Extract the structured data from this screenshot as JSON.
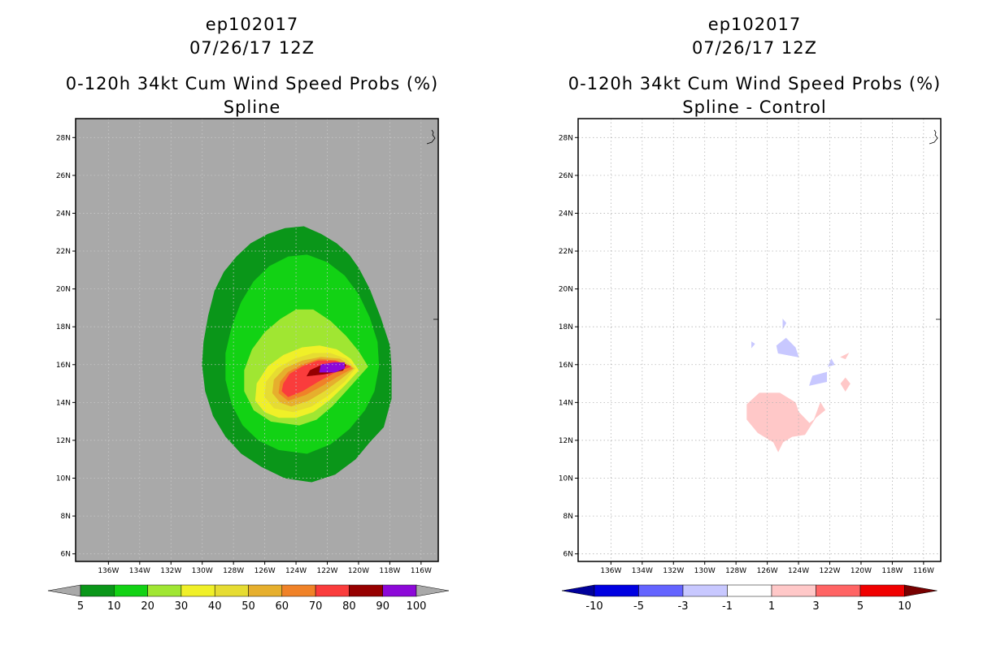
{
  "chart_data": [
    {
      "type": "heatmap",
      "title": [
        "ep102017",
        "07/26/17 12Z",
        "0-120h 34kt Cum Wind Speed Probs (%)",
        "Spline"
      ],
      "xlabel": "",
      "ylabel": "",
      "x_ticks": [
        "136W",
        "134W",
        "132W",
        "130W",
        "128W",
        "126W",
        "124W",
        "122W",
        "120W",
        "118W",
        "116W"
      ],
      "y_ticks": [
        "6N",
        "8N",
        "10N",
        "12N",
        "14N",
        "16N",
        "18N",
        "20N",
        "22N",
        "24N",
        "26N",
        "28N"
      ],
      "xlim": [
        -138.1,
        -114.9
      ],
      "ylim": [
        5.6,
        29.0
      ],
      "grid": true,
      "background_color": "#a9a9a9",
      "colorbar": {
        "labels": [
          "5",
          "10",
          "20",
          "30",
          "40",
          "50",
          "60",
          "70",
          "80",
          "90",
          "100"
        ],
        "colors": [
          "#0a9619",
          "#12d214",
          "#a0e632",
          "#f0f028",
          "#e6dc32",
          "#e6af2d",
          "#f08228",
          "#fa3c3c",
          "#960000",
          "#8c08d8"
        ],
        "extend": "both",
        "extend_color": "#a9a9a9"
      },
      "contours": [
        {
          "level": "5-10",
          "color": "#0a9619",
          "polygon": [
            [
              -123.0,
              9.8
            ],
            [
              -121.5,
              10.2
            ],
            [
              -120.2,
              11.0
            ],
            [
              -119.3,
              11.9
            ],
            [
              -118.4,
              12.7
            ],
            [
              -117.9,
              14.2
            ],
            [
              -117.9,
              15.8
            ],
            [
              -118.0,
              17.0
            ],
            [
              -118.6,
              18.5
            ],
            [
              -119.3,
              20.0
            ],
            [
              -120.0,
              21.1
            ],
            [
              -120.6,
              21.8
            ],
            [
              -121.4,
              22.4
            ],
            [
              -122.4,
              22.9
            ],
            [
              -123.5,
              23.3
            ],
            [
              -124.7,
              23.2
            ],
            [
              -125.8,
              22.9
            ],
            [
              -126.9,
              22.4
            ],
            [
              -127.8,
              21.7
            ],
            [
              -128.6,
              20.9
            ],
            [
              -129.2,
              19.9
            ],
            [
              -129.6,
              18.6
            ],
            [
              -129.9,
              17.2
            ],
            [
              -130.0,
              16.0
            ],
            [
              -129.8,
              14.6
            ],
            [
              -129.3,
              13.3
            ],
            [
              -128.5,
              12.2
            ],
            [
              -127.5,
              11.3
            ],
            [
              -126.2,
              10.6
            ],
            [
              -124.7,
              10.0
            ]
          ]
        },
        {
          "level": "10-20",
          "color": "#12d214",
          "polygon": [
            [
              -123.3,
              11.3
            ],
            [
              -121.8,
              11.8
            ],
            [
              -120.6,
              12.6
            ],
            [
              -119.6,
              13.6
            ],
            [
              -119.0,
              14.6
            ],
            [
              -118.7,
              15.9
            ],
            [
              -118.8,
              17.2
            ],
            [
              -119.3,
              18.5
            ],
            [
              -120.0,
              19.7
            ],
            [
              -120.9,
              20.7
            ],
            [
              -122.0,
              21.4
            ],
            [
              -123.3,
              21.8
            ],
            [
              -124.5,
              21.7
            ],
            [
              -125.7,
              21.2
            ],
            [
              -126.7,
              20.4
            ],
            [
              -127.5,
              19.3
            ],
            [
              -128.1,
              18.0
            ],
            [
              -128.5,
              16.6
            ],
            [
              -128.5,
              15.2
            ],
            [
              -128.1,
              13.9
            ],
            [
              -127.4,
              12.8
            ],
            [
              -126.4,
              12.0
            ],
            [
              -125.1,
              11.5
            ]
          ]
        },
        {
          "level": "20-30",
          "color": "#a0e632",
          "polygon": [
            [
              -123.8,
              12.8
            ],
            [
              -122.7,
              13.1
            ],
            [
              -121.7,
              13.8
            ],
            [
              -120.7,
              14.7
            ],
            [
              -119.4,
              15.9
            ],
            [
              -120.0,
              16.7
            ],
            [
              -120.8,
              17.5
            ],
            [
              -121.8,
              18.3
            ],
            [
              -122.9,
              18.9
            ],
            [
              -124.0,
              18.9
            ],
            [
              -125.0,
              18.4
            ],
            [
              -126.0,
              17.7
            ],
            [
              -126.8,
              16.8
            ],
            [
              -127.3,
              15.7
            ],
            [
              -127.3,
              14.6
            ],
            [
              -126.7,
              13.6
            ],
            [
              -125.6,
              13.0
            ]
          ]
        },
        {
          "level": "30-40",
          "color": "#f0f028",
          "polygon": [
            [
              -124.0,
              13.2
            ],
            [
              -122.9,
              13.5
            ],
            [
              -121.9,
              14.1
            ],
            [
              -120.9,
              14.9
            ],
            [
              -120.0,
              15.7
            ],
            [
              -120.5,
              16.3
            ],
            [
              -121.4,
              16.8
            ],
            [
              -122.5,
              17.0
            ],
            [
              -123.6,
              16.9
            ],
            [
              -124.8,
              16.5
            ],
            [
              -125.8,
              15.9
            ],
            [
              -126.5,
              15.0
            ],
            [
              -126.6,
              14.1
            ],
            [
              -126.0,
              13.5
            ],
            [
              -125.1,
              13.2
            ]
          ]
        },
        {
          "level": "40-50",
          "color": "#e6dc32",
          "polygon": [
            [
              -124.2,
              13.5
            ],
            [
              -123.0,
              13.8
            ],
            [
              -121.9,
              14.4
            ],
            [
              -120.9,
              15.1
            ],
            [
              -120.2,
              15.8
            ],
            [
              -120.8,
              16.3
            ],
            [
              -121.8,
              16.6
            ],
            [
              -122.9,
              16.6
            ],
            [
              -124.1,
              16.3
            ],
            [
              -125.2,
              15.8
            ],
            [
              -125.9,
              15.1
            ],
            [
              -126.0,
              14.3
            ],
            [
              -125.4,
              13.7
            ]
          ]
        },
        {
          "level": "50-60",
          "color": "#e6af2d",
          "polygon": [
            [
              -124.3,
              13.8
            ],
            [
              -123.2,
              14.1
            ],
            [
              -122.2,
              14.6
            ],
            [
              -121.2,
              15.2
            ],
            [
              -120.3,
              15.8
            ],
            [
              -121.2,
              16.3
            ],
            [
              -122.4,
              16.4
            ],
            [
              -123.6,
              16.2
            ],
            [
              -124.7,
              15.8
            ],
            [
              -125.4,
              15.2
            ],
            [
              -125.5,
              14.5
            ],
            [
              -125.0,
              14.0
            ]
          ]
        },
        {
          "level": "60-70",
          "color": "#f08228",
          "polygon": [
            [
              -124.5,
              14.1
            ],
            [
              -123.4,
              14.4
            ],
            [
              -122.3,
              14.9
            ],
            [
              -121.3,
              15.4
            ],
            [
              -120.4,
              15.8
            ],
            [
              -121.4,
              16.2
            ],
            [
              -122.5,
              16.3
            ],
            [
              -123.6,
              16.0
            ],
            [
              -124.5,
              15.6
            ],
            [
              -125.0,
              15.1
            ],
            [
              -125.1,
              14.5
            ]
          ]
        },
        {
          "level": "70-80",
          "color": "#fa3c3c",
          "polygon": [
            [
              -124.5,
              14.3
            ],
            [
              -123.6,
              14.6
            ],
            [
              -122.6,
              15.1
            ],
            [
              -121.5,
              15.6
            ],
            [
              -120.5,
              15.9
            ],
            [
              -121.5,
              16.2
            ],
            [
              -122.6,
              16.2
            ],
            [
              -123.6,
              15.9
            ],
            [
              -124.4,
              15.5
            ],
            [
              -124.8,
              15.0
            ],
            [
              -124.9,
              14.6
            ]
          ]
        },
        {
          "level": "80-90",
          "color": "#960000",
          "polygon": [
            [
              -123.3,
              15.4
            ],
            [
              -122.2,
              15.5
            ],
            [
              -121.0,
              15.7
            ],
            [
              -120.8,
              16.0
            ],
            [
              -121.5,
              16.1
            ],
            [
              -122.3,
              16.0
            ],
            [
              -123.1,
              15.7
            ]
          ]
        },
        {
          "level": "90-100",
          "color": "#8c08d8",
          "polygon": [
            [
              -122.5,
              15.6
            ],
            [
              -121.5,
              15.6
            ],
            [
              -120.9,
              15.8
            ],
            [
              -120.9,
              16.1
            ],
            [
              -121.6,
              16.1
            ],
            [
              -122.4,
              16.0
            ]
          ]
        }
      ]
    },
    {
      "type": "heatmap",
      "title": [
        "ep102017",
        "07/26/17 12Z",
        "0-120h 34kt Cum Wind Speed Probs (%)",
        "Spline - Control"
      ],
      "xlabel": "",
      "ylabel": "",
      "x_ticks": [
        "136W",
        "134W",
        "132W",
        "130W",
        "128W",
        "126W",
        "124W",
        "122W",
        "120W",
        "118W",
        "116W"
      ],
      "y_ticks": [
        "6N",
        "8N",
        "10N",
        "12N",
        "14N",
        "16N",
        "18N",
        "20N",
        "22N",
        "24N",
        "26N",
        "28N"
      ],
      "xlim": [
        -138.1,
        -114.9
      ],
      "ylim": [
        5.6,
        29.0
      ],
      "grid": true,
      "background_color": "#ffffff",
      "colorbar": {
        "labels": [
          "-10",
          "-5",
          "-3",
          "-1",
          "1",
          "3",
          "5",
          "10"
        ],
        "colors": [
          "#0000e1",
          "#6464ff",
          "#c8c8ff",
          "#ffffff",
          "#ffc8c8",
          "#ff6464",
          "#f00000"
        ],
        "extend": "both",
        "extend_low_color": "#00009b",
        "extend_high_color": "#780000"
      },
      "contours": [
        {
          "level": "1-3",
          "color": "#ffc8c8",
          "polygon": [
            [
              -125.6,
              11.9
            ],
            [
              -125.2,
              12.7
            ],
            [
              -124.4,
              13.1
            ],
            [
              -124.0,
              13.5
            ],
            [
              -123.3,
              12.9
            ],
            [
              -123.0,
              13.1
            ],
            [
              -122.6,
              14.0
            ],
            [
              -122.3,
              13.6
            ],
            [
              -122.9,
              13.2
            ],
            [
              -123.6,
              12.3
            ],
            [
              -124.4,
              12.2
            ],
            [
              -125.0,
              11.9
            ],
            [
              -125.3,
              11.4
            ]
          ]
        },
        {
          "level": "1-3",
          "color": "#ffc8c8",
          "polygon": [
            [
              -125.6,
              11.9
            ],
            [
              -126.6,
              12.4
            ],
            [
              -127.3,
              13.1
            ],
            [
              -127.3,
              13.9
            ],
            [
              -126.5,
              14.5
            ],
            [
              -125.2,
              14.5
            ],
            [
              -124.2,
              14.0
            ],
            [
              -124.0,
              13.5
            ],
            [
              -124.4,
              13.1
            ],
            [
              -125.2,
              12.7
            ]
          ]
        },
        {
          "level": "1-3",
          "color": "#ffc8c8",
          "polygon": [
            [
              -121.3,
              16.4
            ],
            [
              -120.8,
              16.6
            ],
            [
              -121.0,
              16.3
            ]
          ]
        },
        {
          "level": "1-3",
          "color": "#ffc8c8",
          "polygon": [
            [
              -121.3,
              15.0
            ],
            [
              -121.0,
              14.6
            ],
            [
              -120.7,
              15.0
            ],
            [
              -121.0,
              15.3
            ]
          ]
        },
        {
          "level": "-3--1",
          "color": "#c8c8ff",
          "polygon": [
            [
              -124.0,
              16.4
            ],
            [
              -125.3,
              16.6
            ],
            [
              -125.4,
              17.0
            ],
            [
              -124.8,
              17.4
            ],
            [
              -124.2,
              16.9
            ]
          ]
        },
        {
          "level": "-3--1",
          "color": "#c8c8ff",
          "polygon": [
            [
              -123.3,
              14.9
            ],
            [
              -122.2,
              15.1
            ],
            [
              -122.2,
              15.6
            ],
            [
              -123.1,
              15.4
            ]
          ]
        },
        {
          "level": "-3--1",
          "color": "#c8c8ff",
          "polygon": [
            [
              -122.1,
              15.9
            ],
            [
              -121.7,
              16.0
            ],
            [
              -121.9,
              16.3
            ]
          ]
        },
        {
          "level": "-3--1",
          "color": "#c8c8ff",
          "polygon": [
            [
              -125.0,
              17.9
            ],
            [
              -124.8,
              18.2
            ],
            [
              -125.0,
              18.4
            ]
          ]
        },
        {
          "level": "-3--1",
          "color": "#c8c8ff",
          "polygon": [
            [
              -127.0,
              16.9
            ],
            [
              -126.8,
              17.1
            ],
            [
              -127.0,
              17.2
            ]
          ]
        }
      ]
    }
  ]
}
